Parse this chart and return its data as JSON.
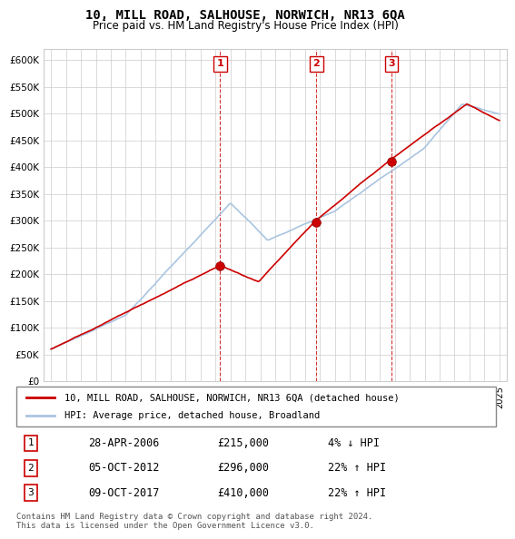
{
  "title": "10, MILL ROAD, SALHOUSE, NORWICH, NR13 6QA",
  "subtitle": "Price paid vs. HM Land Registry's House Price Index (HPI)",
  "ylabel_ticks": [
    "£0",
    "£50K",
    "£100K",
    "£150K",
    "£200K",
    "£250K",
    "£300K",
    "£350K",
    "£400K",
    "£450K",
    "£500K",
    "£550K",
    "£600K"
  ],
  "ytick_values": [
    0,
    50000,
    100000,
    150000,
    200000,
    250000,
    300000,
    350000,
    400000,
    450000,
    500000,
    550000,
    600000
  ],
  "background_color": "#ffffff",
  "grid_color": "#cccccc",
  "hpi_color": "#aac4e0",
  "price_color": "#cc0000",
  "sale_marker_color": "#cc0000",
  "sale_marker_edge": "#000000",
  "transactions": [
    {
      "num": 1,
      "date_x": 2006.32,
      "price": 215000,
      "label": "28-APR-2006",
      "amount": "£215,000",
      "pct": "4% ↓ HPI"
    },
    {
      "num": 2,
      "date_x": 2012.76,
      "price": 296000,
      "label": "05-OCT-2012",
      "amount": "£296,000",
      "pct": "22% ↑ HPI"
    },
    {
      "num": 3,
      "date_x": 2017.77,
      "price": 410000,
      "label": "09-OCT-2017",
      "amount": "£410,000",
      "pct": "22% ↑ HPI"
    }
  ],
  "legend_entries": [
    {
      "label": "10, MILL ROAD, SALHOUSE, NORWICH, NR13 6QA (detached house)",
      "color": "#cc0000"
    },
    {
      "label": "HPI: Average price, detached house, Broadland",
      "color": "#aac4e0"
    }
  ],
  "footnote": "Contains HM Land Registry data © Crown copyright and database right 2024.\nThis data is licensed under the Open Government Licence v3.0.",
  "xlim": [
    1994.5,
    2025.5
  ],
  "ylim": [
    0,
    620000
  ]
}
